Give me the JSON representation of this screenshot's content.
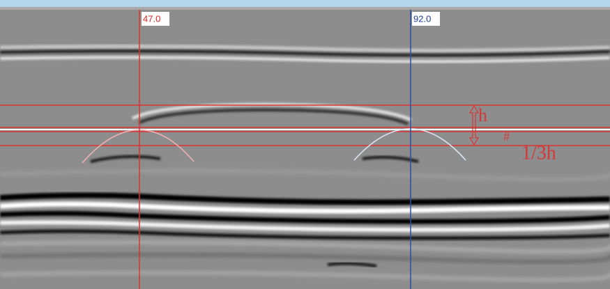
{
  "cursors": [
    {
      "label": "47.0"
    },
    {
      "label": "92.0"
    }
  ],
  "annotations": {
    "height": "h",
    "mark": "#",
    "fraction": "1/3h"
  }
}
